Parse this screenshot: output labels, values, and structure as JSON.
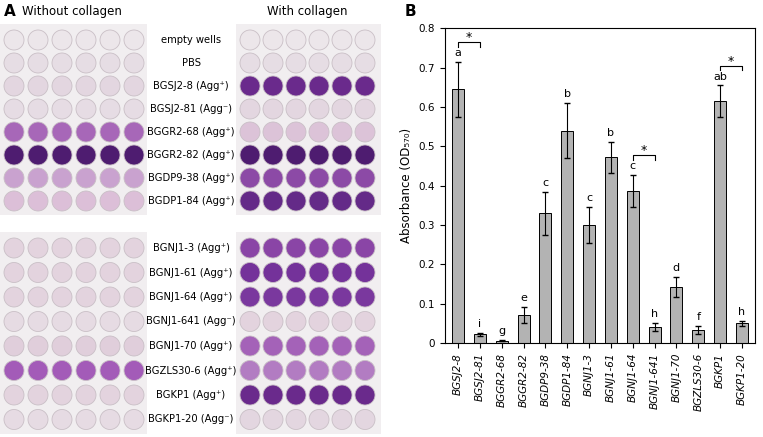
{
  "panel_a": {
    "panel_label": "A",
    "left_title": "Without collagen",
    "right_title": "With collagen",
    "plates": [
      [
        {
          "label": "empty wells",
          "left_color": "#ece6ea",
          "right_color": "#ece6ea"
        },
        {
          "label": "PBS",
          "left_color": "#e6dde4",
          "right_color": "#e6dde4"
        },
        {
          "label": "BGSJ2-8 (Agg⁺)",
          "left_color": "#e3d6e0",
          "right_color": "#6a2a8c"
        },
        {
          "label": "BGSJ2-81 (Agg⁻)",
          "left_color": "#e6dce4",
          "right_color": "#e3d6e0"
        },
        {
          "label": "BGGR2-68 (Agg⁺)",
          "left_color": "#a767b8",
          "right_color": "#dcc3d8"
        },
        {
          "label": "BGGR2-82 (Agg⁺)",
          "left_color": "#4e1c70",
          "right_color": "#4e1c70"
        },
        {
          "label": "BGDP9-38 (Agg⁺)",
          "left_color": "#c9a2cf",
          "right_color": "#8c4aa6"
        },
        {
          "label": "BGDP1-84 (Agg⁺)",
          "left_color": "#dcbfd8",
          "right_color": "#642a88"
        }
      ],
      [
        {
          "label": "BGNJ1-3 (Agg⁺)",
          "left_color": "#e3d3de",
          "right_color": "#8a45a6"
        },
        {
          "label": "BGNJ1-61 (Agg⁺)",
          "left_color": "#e3d3de",
          "right_color": "#74329a"
        },
        {
          "label": "BGNJ1-64 (Agg⁺)",
          "left_color": "#e3d3de",
          "right_color": "#7a389e"
        },
        {
          "label": "BGNJ1-641 (Agg⁻)",
          "left_color": "#e6dbe3",
          "right_color": "#e3d3de"
        },
        {
          "label": "BGNJ1-70 (Agg⁺)",
          "left_color": "#e0cedb",
          "right_color": "#a462b8"
        },
        {
          "label": "BGZLS30-6 (Agg⁺)",
          "left_color": "#a35bb8",
          "right_color": "#b27cc2"
        },
        {
          "label": "BGKP1 (Agg⁺)",
          "left_color": "#e3d3de",
          "right_color": "#6a2a8c"
        },
        {
          "label": "BGKP1-20 (Agg⁻)",
          "left_color": "#e6dbe3",
          "right_color": "#e3d6e0"
        }
      ]
    ]
  },
  "chart_data": {
    "type": "bar",
    "panel_label": "B",
    "y_label": "Absorbance (OD₅₇₀)",
    "categories": [
      "BGSJ2-8",
      "BGSJ2-81",
      "BGGR2-68",
      "BGGR2-82",
      "BGDP9-38",
      "BGDP1-84",
      "BGNJ1-3",
      "BGNJ1-61",
      "BGNJ1-64",
      "BGNJ1-641",
      "BGNJ1-70",
      "BGZLS30-6",
      "BGKP1",
      "BGKP1-20"
    ],
    "values": [
      0.645,
      0.022,
      0.006,
      0.072,
      0.33,
      0.54,
      0.3,
      0.472,
      0.387,
      0.04,
      0.143,
      0.033,
      0.615,
      0.05
    ],
    "errors": [
      0.07,
      0.004,
      0.002,
      0.02,
      0.055,
      0.07,
      0.045,
      0.04,
      0.04,
      0.01,
      0.025,
      0.01,
      0.04,
      0.007
    ],
    "letters": [
      "a",
      "i",
      "g",
      "e",
      "c",
      "b",
      "c",
      "b",
      "c",
      "h",
      "d",
      "f",
      "ab",
      "h"
    ],
    "comparisons": [
      {
        "from": "BGSJ2-8",
        "to": "BGSJ2-81",
        "label": "*"
      },
      {
        "from": "BGNJ1-64",
        "to": "BGNJ1-641",
        "label": "*"
      },
      {
        "from": "BGKP1",
        "to": "BGKP1-20",
        "label": "*"
      }
    ],
    "color": "#b3b3b3",
    "ylim": [
      0,
      0.8
    ],
    "yticks": [
      0,
      0.1,
      0.2,
      0.3,
      0.4,
      0.5,
      0.6,
      0.7,
      0.8
    ],
    "grid": false
  }
}
